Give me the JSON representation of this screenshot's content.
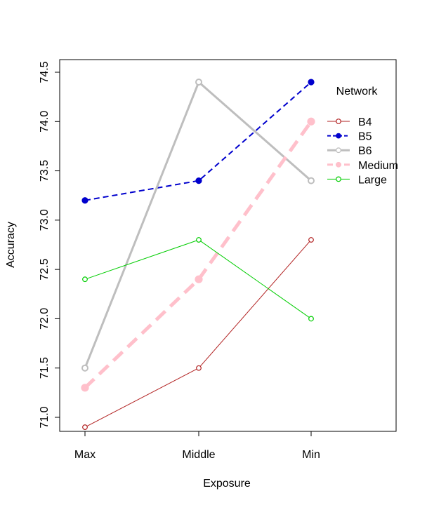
{
  "chart_data": {
    "type": "line",
    "xlabel": "Exposure",
    "ylabel": "Accuracy",
    "categories": [
      "Max",
      "Middle",
      "Min"
    ],
    "ylim": [
      70.8,
      74.55
    ],
    "yticks": [
      "71.0",
      "71.5",
      "72.0",
      "72.5",
      "73.0",
      "73.5",
      "74.0",
      "74.5"
    ],
    "grid": false,
    "legend_title": "Network",
    "legend_position": "top-right",
    "series": [
      {
        "name": "B4",
        "values": [
          70.9,
          71.5,
          72.8
        ],
        "color": "#b22222",
        "line": "solid",
        "marker": "open-circle",
        "width": "thin"
      },
      {
        "name": "B5",
        "values": [
          73.2,
          73.4,
          74.4
        ],
        "color": "#0000cd",
        "line": "dashed",
        "marker": "filled-circle",
        "width": "medium"
      },
      {
        "name": "B6",
        "values": [
          71.5,
          74.4,
          73.4
        ],
        "color": "#bebebe",
        "line": "solid",
        "marker": "open-circle",
        "width": "thick"
      },
      {
        "name": "Medium",
        "values": [
          71.3,
          72.4,
          74.0
        ],
        "color": "#ffc0cb",
        "line": "long-dash",
        "marker": "filled-circle",
        "width": "extra-thick"
      },
      {
        "name": "Large",
        "values": [
          72.4,
          72.8,
          72.0
        ],
        "color": "#00cd00",
        "line": "solid",
        "marker": "open-circle",
        "width": "thin"
      }
    ]
  }
}
